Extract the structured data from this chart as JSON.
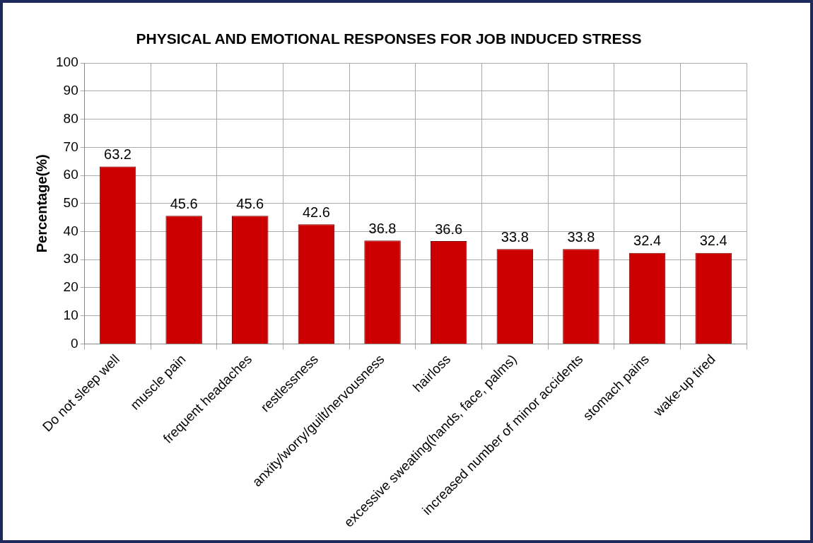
{
  "chart_data": {
    "type": "bar",
    "title": "PHYSICAL AND EMOTIONAL RESPONSES FOR JOB INDUCED STRESS",
    "ylabel": "Percentage(%)",
    "categories": [
      "Do not sleep well",
      "muscle pain",
      "frequent headaches",
      "restlessness",
      "anxity/worry/guilt/nervousness",
      "hairloss",
      "excessive sweating(hands, face, palms)",
      "increased number of minor accidents",
      "stomach pains",
      "wake-up tired"
    ],
    "values": [
      63.2,
      45.6,
      45.6,
      42.6,
      36.8,
      36.6,
      33.8,
      33.8,
      32.4,
      32.4
    ],
    "color": "#cc0000",
    "ylim": [
      0,
      100
    ],
    "yticks": [
      0,
      10,
      20,
      30,
      40,
      50,
      60,
      70,
      80,
      90,
      100
    ],
    "grid": true,
    "data_labels": true,
    "legend": false
  }
}
